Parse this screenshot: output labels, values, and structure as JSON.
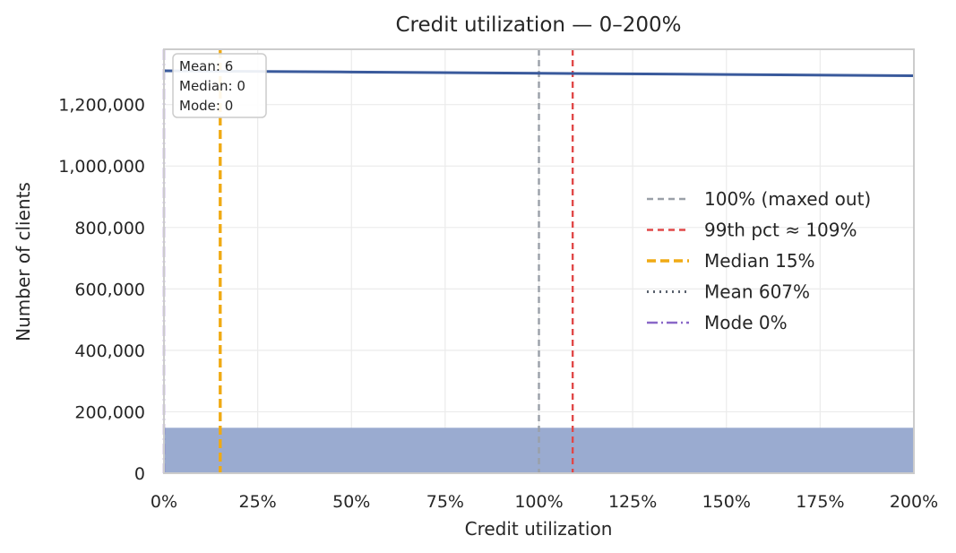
{
  "chart_data": {
    "type": "bar",
    "title": "Credit utilization — 0–200%",
    "xlabel": "Credit utilization",
    "ylabel": "Number of clients",
    "xlim": [
      0,
      200
    ],
    "ylim": [
      0,
      1380000
    ],
    "x_ticks": [
      "0%",
      "25%",
      "50%",
      "75%",
      "100%",
      "125%",
      "150%",
      "175%",
      "200%"
    ],
    "x_tick_values": [
      0,
      25,
      50,
      75,
      100,
      125,
      150,
      175,
      200
    ],
    "y_ticks": [
      "0",
      "200,000",
      "400,000",
      "600,000",
      "800,000",
      "1,000,000",
      "1,200,000"
    ],
    "y_tick_values": [
      0,
      200000,
      400000,
      600000,
      800000,
      1000000,
      1200000
    ],
    "grid": true,
    "histogram": {
      "bins": [
        {
          "x0": 0,
          "x1": 200,
          "count": 148000
        }
      ],
      "color": "#9aabd0"
    },
    "kde": {
      "color": "#3a5a9c",
      "x": [
        0,
        50,
        100,
        150,
        200
      ],
      "y": [
        1310000,
        1306000,
        1302000,
        1298000,
        1294000
      ]
    },
    "reference_lines": [
      {
        "label": "100% (maxed out)",
        "x": 100,
        "color": "#9aa0a8",
        "style": "dashed"
      },
      {
        "label": "99th pct ≈ 109%",
        "x": 109,
        "color": "#e04848",
        "style": "dashed"
      },
      {
        "label": "Median 15%",
        "x": 15,
        "color": "#f0aa14",
        "style": "dashed-thick"
      },
      {
        "label": "Mean 607%",
        "x": 607,
        "color": "#5a626e",
        "style": "dotted"
      },
      {
        "label": "Mode 0%",
        "x": 0,
        "color": "#8a68c8",
        "style": "dashdot"
      }
    ],
    "stats_box": [
      "Mean: 6",
      "Median: 0",
      "Mode: 0"
    ],
    "legend_position": "center-right"
  }
}
